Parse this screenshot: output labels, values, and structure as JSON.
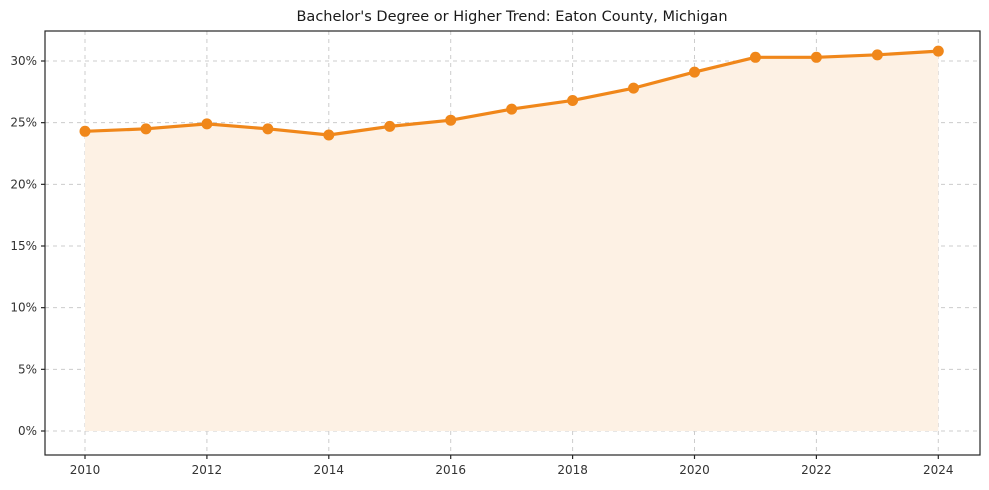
{
  "title": "Bachelor's Degree or Higher Trend: Eaton County, Michigan",
  "colors": {
    "line": "#f0871a",
    "marker": "#f0871a",
    "area_fill": "#fdf1e4",
    "grid": "#cccccc",
    "spine": "#262626",
    "tick": "#262626",
    "tick_label": "#333333",
    "title": "#1a1a1a",
    "background": "#ffffff"
  },
  "chart_data": {
    "type": "line",
    "title": "Bachelor's Degree or Higher Trend: Eaton County, Michigan",
    "xlabel": "",
    "ylabel": "",
    "x": [
      2010,
      2011,
      2012,
      2013,
      2014,
      2015,
      2016,
      2017,
      2018,
      2019,
      2020,
      2021,
      2022,
      2023,
      2024
    ],
    "series": [
      {
        "name": "Bachelor's degree or higher (%)",
        "values": [
          24.3,
          24.5,
          24.9,
          24.5,
          24.0,
          24.7,
          25.2,
          26.1,
          26.8,
          27.8,
          29.1,
          30.3,
          30.3,
          30.5,
          30.8
        ]
      }
    ],
    "xticks": [
      2010,
      2012,
      2014,
      2016,
      2018,
      2020,
      2022,
      2024
    ],
    "xtick_labels": [
      "2010",
      "2012",
      "2014",
      "2016",
      "2018",
      "2020",
      "2022",
      "2024"
    ],
    "yticks": [
      0,
      5,
      10,
      15,
      20,
      25,
      30
    ],
    "ytick_labels": [
      "0%",
      "5%",
      "10%",
      "15%",
      "20%",
      "25%",
      "30%"
    ],
    "ylim": [
      -1.95,
      32.43
    ],
    "grid": true,
    "grid_style": "dashed",
    "legend": false,
    "marker": "circle",
    "area_fill": true
  }
}
